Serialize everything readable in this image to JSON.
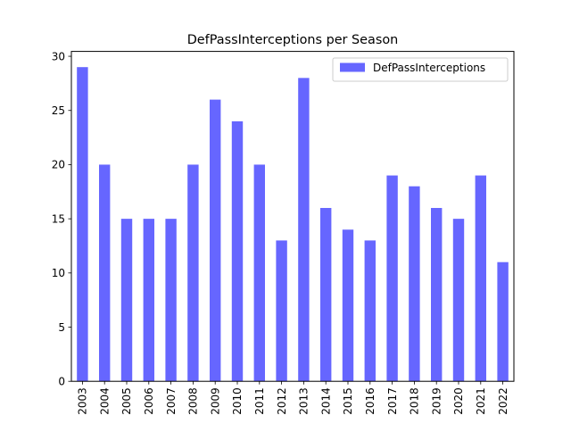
{
  "chart_data": {
    "type": "bar",
    "title": "DefPassInterceptions per Season",
    "categories": [
      "2003",
      "2004",
      "2005",
      "2006",
      "2007",
      "2008",
      "2009",
      "2010",
      "2011",
      "2012",
      "2013",
      "2014",
      "2015",
      "2016",
      "2017",
      "2018",
      "2019",
      "2020",
      "2021",
      "2022"
    ],
    "series": [
      {
        "name": "DefPassInterceptions",
        "values": [
          29,
          20,
          15,
          15,
          15,
          20,
          26,
          24,
          20,
          13,
          28,
          16,
          14,
          13,
          19,
          18,
          16,
          15,
          19,
          11
        ],
        "color": "#6666ff"
      }
    ],
    "ylim": [
      0,
      30.45
    ],
    "yticks": [
      0,
      5,
      10,
      15,
      20,
      25,
      30
    ],
    "grid": false,
    "legend_position": "top-right"
  }
}
